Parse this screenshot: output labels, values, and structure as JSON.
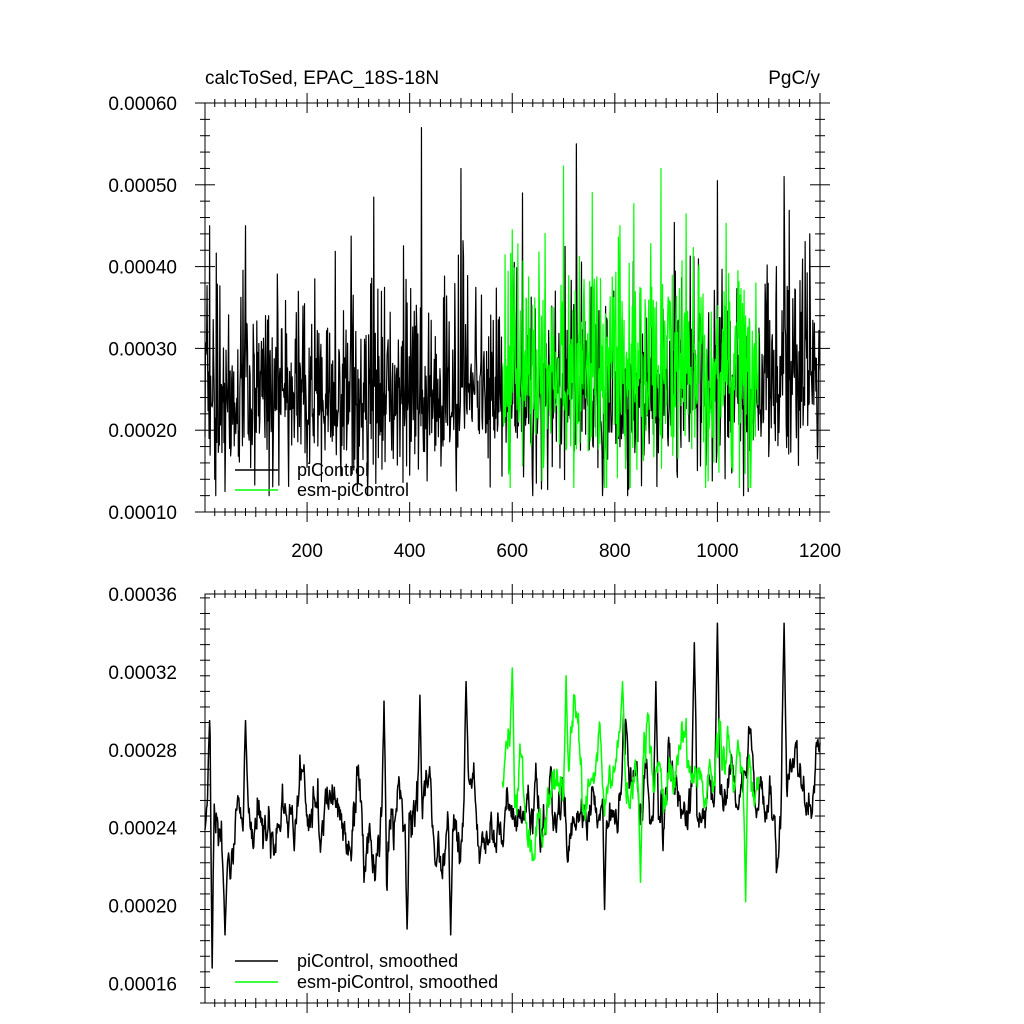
{
  "chart_data": [
    {
      "type": "line",
      "title": "calcToSed, EPAC_18S-18N",
      "units": "PgC/y",
      "xlim": [
        1,
        1200
      ],
      "ylim": [
        0.0001,
        0.0006
      ],
      "x_ticks": [
        200,
        400,
        600,
        800,
        1000,
        1200
      ],
      "x_tick_labels": [
        "200",
        "400",
        "600",
        "800",
        "1000",
        "1200"
      ],
      "y_ticks": [
        0.0001,
        0.0002,
        0.0003,
        0.0004,
        0.0005,
        0.0006
      ],
      "y_tick_labels": [
        "0.00010",
        "0.00020",
        "0.00030",
        "0.00040",
        "0.00050",
        "0.00060"
      ],
      "grid": false,
      "legend_position": "bottom-left",
      "series": [
        {
          "name": "piControl",
          "color": "#000000",
          "x_range": [
            1,
            1200
          ],
          "mean": 0.000245,
          "spread": 5e-05,
          "min": 0.00012,
          "max": 0.00057,
          "peaks": [
            [
              10,
              0.00045
            ],
            [
              80,
              0.00045
            ],
            [
              330,
              0.000485
            ],
            [
              423,
              0.00057
            ],
            [
              500,
              0.00052
            ],
            [
              620,
              0.00049
            ],
            [
              725,
              0.00055
            ],
            [
              1000,
              0.000505
            ],
            [
              1130,
              0.00051
            ],
            [
              1180,
              0.00044
            ]
          ],
          "lows": [
            [
              20,
              0.00014
            ],
            [
              40,
              0.000125
            ],
            [
              400,
              0.000145
            ],
            [
              1060,
              0.000125
            ]
          ]
        },
        {
          "name": "esm-piControl",
          "color": "#00ff00",
          "x_range": [
            581,
            1080
          ],
          "mean": 0.000262,
          "spread": 5.5e-05,
          "min": 0.00013,
          "max": 0.000523,
          "peaks": [
            [
              600,
              0.000445
            ],
            [
              700,
              0.000523
            ],
            [
              810,
              0.00045
            ],
            [
              890,
              0.00052
            ],
            [
              1040,
              0.000395
            ]
          ],
          "lows": [
            [
              720,
              0.00013
            ],
            [
              1030,
              0.00015
            ]
          ]
        }
      ]
    },
    {
      "type": "line",
      "xlim": [
        1,
        1200
      ],
      "ylim": [
        0.00015,
        0.00036
      ],
      "x_ticks": [
        200,
        400,
        600,
        800,
        1000,
        1200
      ],
      "y_ticks": [
        0.00016,
        0.0002,
        0.00024,
        0.00028,
        0.00032,
        0.00036
      ],
      "y_tick_labels": [
        "0.00016",
        "0.00020",
        "0.00024",
        "0.00028",
        "0.00032",
        "0.00036"
      ],
      "grid": false,
      "legend_position": "bottom-left",
      "series": [
        {
          "name": "piControl, smoothed",
          "color": "#000000",
          "x_range": [
            1,
            1200
          ],
          "mean": 0.000248,
          "spread": 2e-05,
          "min": 0.000168,
          "max": 0.000345,
          "peaks": [
            [
              10,
              0.000295
            ],
            [
              80,
              0.000295
            ],
            [
              350,
              0.000305
            ],
            [
              420,
              0.000308
            ],
            [
              510,
              0.000315
            ],
            [
              880,
              0.000315
            ],
            [
              955,
              0.000335
            ],
            [
              1000,
              0.000345
            ],
            [
              1130,
              0.000345
            ]
          ],
          "lows": [
            [
              15,
              0.000168
            ],
            [
              40,
              0.000185
            ],
            [
              395,
              0.000188
            ],
            [
              480,
              0.000185
            ],
            [
              780,
              0.000198
            ]
          ]
        },
        {
          "name": "esm-piControl, smoothed",
          "color": "#00ff00",
          "x_range": [
            581,
            1080
          ],
          "mean": 0.000262,
          "spread": 1.8e-05,
          "min": 0.000202,
          "max": 0.000322,
          "peaks": [
            [
              600,
              0.000322
            ],
            [
              705,
              0.000318
            ],
            [
              815,
              0.000315
            ],
            [
              1040,
              0.000285
            ]
          ],
          "lows": [
            [
              850,
              0.000212
            ],
            [
              1055,
              0.000202
            ]
          ]
        }
      ]
    }
  ]
}
